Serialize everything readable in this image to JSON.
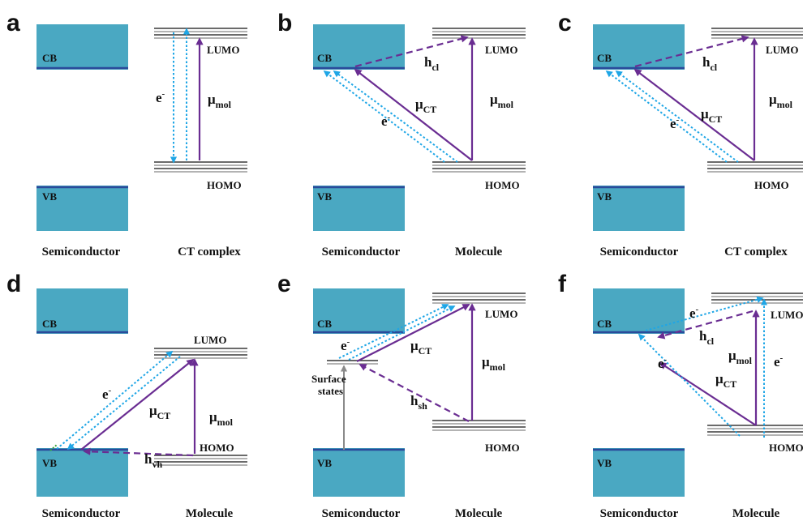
{
  "colors": {
    "band": "#4aa8c2",
    "band_edge": "#2a4a9a",
    "purple": "#6a2d92",
    "electron": "#1fa6e6",
    "surface_arrow": "#8a8a8a",
    "text": "#111111"
  },
  "labels": {
    "cb": "CB",
    "vb": "VB",
    "lumo": "LUMO",
    "homo": "HOMO",
    "semiconductor": "Semiconductor",
    "molecule": "Molecule",
    "ct_complex": "CT complex",
    "mu": "μ",
    "h": "h",
    "e": "e",
    "minus": "-",
    "mol": "mol",
    "ct": "CT",
    "cl": "cl",
    "vh": "vh",
    "sh": "sh",
    "surface_states": "Surface\nstates"
  },
  "panels": [
    {
      "letter": "a",
      "right_label": "CT complex"
    },
    {
      "letter": "b",
      "right_label": "Molecule"
    },
    {
      "letter": "c",
      "right_label": "CT complex"
    },
    {
      "letter": "d",
      "right_label": "Molecule"
    },
    {
      "letter": "e",
      "right_label": "Molecule"
    },
    {
      "letter": "f",
      "right_label": "Molecule"
    }
  ]
}
